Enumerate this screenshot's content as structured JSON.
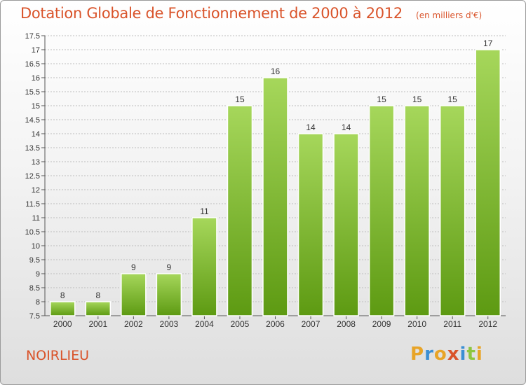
{
  "header": {
    "title": "Dotation Globale de Fonctionnement de 2000 à 2012",
    "subtitle": "(en milliers d'€)"
  },
  "footer": {
    "commune": "NOIRLIEU",
    "brand": "Proxiti",
    "brand_letters": [
      "P",
      "r",
      "o",
      "x",
      "i",
      "t",
      "i"
    ],
    "brand_colors": [
      "#e8a427",
      "#3b8fd4",
      "#e8a427",
      "#d9532a",
      "#3b8fd4",
      "#8dc63f",
      "#e8a427"
    ]
  },
  "colors": {
    "bar_top": "#a6d75b",
    "bar_bottom": "#5d9a12",
    "title": "#d9532a",
    "grid": "#bdbdbd"
  },
  "chart_data": {
    "type": "bar",
    "title": "Dotation Globale de Fonctionnement de 2000 à 2012",
    "subtitle": "(en milliers d'€)",
    "categories": [
      "2000",
      "2001",
      "2002",
      "2003",
      "2004",
      "2005",
      "2006",
      "2007",
      "2008",
      "2009",
      "2010",
      "2011",
      "2012"
    ],
    "values": [
      8,
      8,
      9,
      9,
      11,
      15,
      16,
      14,
      14,
      15,
      15,
      15,
      17
    ],
    "data_labels": [
      "8",
      "8",
      "9",
      "9",
      "11",
      "15",
      "16",
      "14",
      "14",
      "15",
      "15",
      "15",
      "17"
    ],
    "ylim": [
      7.5,
      17.5
    ],
    "yticks": [
      7.5,
      8,
      8.5,
      9,
      9.5,
      10,
      10.5,
      11,
      11.5,
      12,
      12.5,
      13,
      13.5,
      14,
      14.5,
      15,
      15.5,
      16,
      16.5,
      17,
      17.5
    ],
    "ytick_labels": [
      "7.5",
      "8",
      "8.5",
      "9",
      "9.5",
      "10",
      "10.5",
      "11",
      "11.5",
      "12",
      "12.5",
      "13",
      "13.5",
      "14",
      "14.5",
      "15",
      "15.5",
      "16",
      "16.5",
      "17",
      "17.5"
    ],
    "xlabel": "",
    "ylabel": "",
    "grid": true
  }
}
